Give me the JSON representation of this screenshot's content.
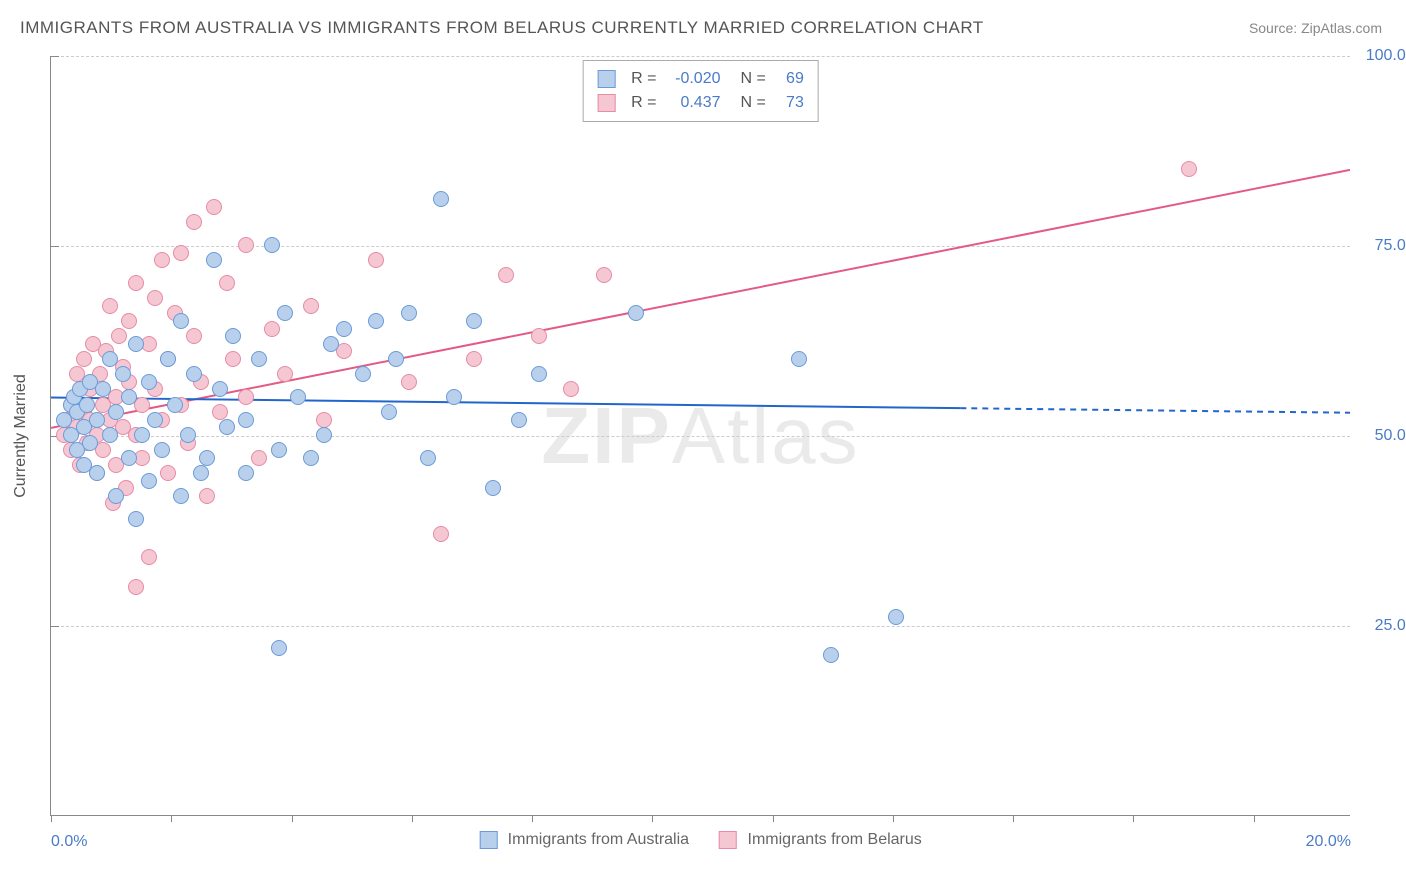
{
  "title": "IMMIGRANTS FROM AUSTRALIA VS IMMIGRANTS FROM BELARUS CURRENTLY MARRIED CORRELATION CHART",
  "source": "Source: ZipAtlas.com",
  "watermark_a": "ZIP",
  "watermark_b": "Atlas",
  "chart": {
    "type": "scatter",
    "ylabel": "Currently Married",
    "background_color": "#ffffff",
    "grid_color": "#cccccc",
    "axis_color": "#888888",
    "tick_label_color": "#4a7bc8",
    "xlim": [
      0,
      20
    ],
    "ylim": [
      0,
      100
    ],
    "yticks": [
      {
        "v": 25,
        "label": "25.0%"
      },
      {
        "v": 50,
        "label": "50.0%"
      },
      {
        "v": 75,
        "label": "75.0%"
      },
      {
        "v": 100,
        "label": "100.0%"
      }
    ],
    "xtick_positions": [
      0,
      1.85,
      3.7,
      5.55,
      7.4,
      9.25,
      11.1,
      12.95,
      14.8,
      16.65,
      18.5
    ],
    "xaxis_labels": [
      {
        "v": 0,
        "label": "0.0%"
      },
      {
        "v": 20,
        "label": "20.0%"
      }
    ],
    "series": [
      {
        "name": "Immigrants from Australia",
        "fill": "#b9d0ec",
        "stroke": "#6a9bd8",
        "marker_radius": 8,
        "r_value": "-0.020",
        "n_value": "69",
        "trend": {
          "color": "#2266cc",
          "width": 2,
          "y_at_x0": 55,
          "y_at_x20": 53,
          "solid_until_x": 14,
          "dashed": true
        }
      },
      {
        "name": "Immigrants from Belarus",
        "fill": "#f5c7d3",
        "stroke": "#e88ba5",
        "marker_radius": 8,
        "r_value": "0.437",
        "n_value": "73",
        "trend": {
          "color": "#e35a84",
          "width": 2,
          "y_at_x0": 51,
          "y_at_x20": 85
        }
      }
    ],
    "points_a": [
      [
        0.2,
        52
      ],
      [
        0.3,
        54
      ],
      [
        0.3,
        50
      ],
      [
        0.35,
        55
      ],
      [
        0.4,
        48
      ],
      [
        0.4,
        53
      ],
      [
        0.45,
        56
      ],
      [
        0.5,
        46
      ],
      [
        0.5,
        51
      ],
      [
        0.55,
        54
      ],
      [
        0.6,
        49
      ],
      [
        0.6,
        57
      ],
      [
        0.7,
        52
      ],
      [
        0.7,
        45
      ],
      [
        0.8,
        56
      ],
      [
        0.9,
        50
      ],
      [
        0.9,
        60
      ],
      [
        1.0,
        53
      ],
      [
        1.0,
        42
      ],
      [
        1.1,
        58
      ],
      [
        1.2,
        47
      ],
      [
        1.2,
        55
      ],
      [
        1.3,
        62
      ],
      [
        1.4,
        50
      ],
      [
        1.5,
        44
      ],
      [
        1.5,
        57
      ],
      [
        1.6,
        52
      ],
      [
        1.7,
        48
      ],
      [
        1.8,
        60
      ],
      [
        1.9,
        54
      ],
      [
        2.0,
        42
      ],
      [
        2.0,
        65
      ],
      [
        2.1,
        50
      ],
      [
        2.2,
        58
      ],
      [
        2.4,
        47
      ],
      [
        2.5,
        73
      ],
      [
        2.6,
        56
      ],
      [
        2.8,
        63
      ],
      [
        3.0,
        45
      ],
      [
        3.0,
        52
      ],
      [
        3.2,
        60
      ],
      [
        3.4,
        75
      ],
      [
        3.5,
        48
      ],
      [
        3.6,
        66
      ],
      [
        3.8,
        55
      ],
      [
        4.0,
        47
      ],
      [
        4.2,
        50
      ],
      [
        4.5,
        64
      ],
      [
        4.8,
        58
      ],
      [
        5.0,
        65
      ],
      [
        5.2,
        53
      ],
      [
        5.5,
        66
      ],
      [
        5.8,
        47
      ],
      [
        6.0,
        81
      ],
      [
        6.2,
        55
      ],
      [
        6.5,
        65
      ],
      [
        6.8,
        43
      ],
      [
        7.2,
        52
      ],
      [
        7.5,
        58
      ],
      [
        9.0,
        66
      ],
      [
        11.5,
        60
      ],
      [
        12.0,
        21
      ],
      [
        13.0,
        26
      ],
      [
        3.5,
        22
      ],
      [
        1.3,
        39
      ],
      [
        2.3,
        45
      ],
      [
        2.7,
        51
      ],
      [
        4.3,
        62
      ],
      [
        5.3,
        60
      ]
    ],
    "points_b": [
      [
        0.2,
        50
      ],
      [
        0.25,
        52
      ],
      [
        0.3,
        54
      ],
      [
        0.3,
        48
      ],
      [
        0.35,
        55
      ],
      [
        0.4,
        51
      ],
      [
        0.4,
        58
      ],
      [
        0.45,
        46
      ],
      [
        0.5,
        53
      ],
      [
        0.5,
        60
      ],
      [
        0.55,
        49
      ],
      [
        0.6,
        56
      ],
      [
        0.6,
        52
      ],
      [
        0.65,
        62
      ],
      [
        0.7,
        50
      ],
      [
        0.7,
        45
      ],
      [
        0.75,
        58
      ],
      [
        0.8,
        54
      ],
      [
        0.8,
        48
      ],
      [
        0.85,
        61
      ],
      [
        0.9,
        52
      ],
      [
        0.9,
        67
      ],
      [
        1.0,
        55
      ],
      [
        1.0,
        46
      ],
      [
        1.05,
        63
      ],
      [
        1.1,
        51
      ],
      [
        1.1,
        59
      ],
      [
        1.15,
        43
      ],
      [
        1.2,
        57
      ],
      [
        1.2,
        65
      ],
      [
        1.3,
        50
      ],
      [
        1.3,
        70
      ],
      [
        1.4,
        54
      ],
      [
        1.4,
        47
      ],
      [
        1.5,
        62
      ],
      [
        1.5,
        34
      ],
      [
        1.6,
        56
      ],
      [
        1.6,
        68
      ],
      [
        1.7,
        52
      ],
      [
        1.8,
        60
      ],
      [
        1.8,
        45
      ],
      [
        1.9,
        66
      ],
      [
        2.0,
        54
      ],
      [
        2.0,
        74
      ],
      [
        2.1,
        49
      ],
      [
        2.2,
        63
      ],
      [
        2.3,
        57
      ],
      [
        2.4,
        42
      ],
      [
        2.5,
        80
      ],
      [
        2.6,
        53
      ],
      [
        2.7,
        70
      ],
      [
        2.8,
        60
      ],
      [
        3.0,
        55
      ],
      [
        3.0,
        75
      ],
      [
        3.2,
        47
      ],
      [
        3.4,
        64
      ],
      [
        3.6,
        58
      ],
      [
        4.0,
        67
      ],
      [
        4.2,
        52
      ],
      [
        4.5,
        61
      ],
      [
        5.0,
        73
      ],
      [
        5.5,
        57
      ],
      [
        6.0,
        37
      ],
      [
        6.5,
        60
      ],
      [
        7.0,
        71
      ],
      [
        7.5,
        63
      ],
      [
        8.0,
        56
      ],
      [
        8.5,
        71
      ],
      [
        1.3,
        30
      ],
      [
        2.2,
        78
      ],
      [
        0.95,
        41
      ],
      [
        1.7,
        73
      ],
      [
        17.5,
        85
      ]
    ]
  },
  "legend": {
    "r_label": "R =",
    "n_label": "N ="
  }
}
